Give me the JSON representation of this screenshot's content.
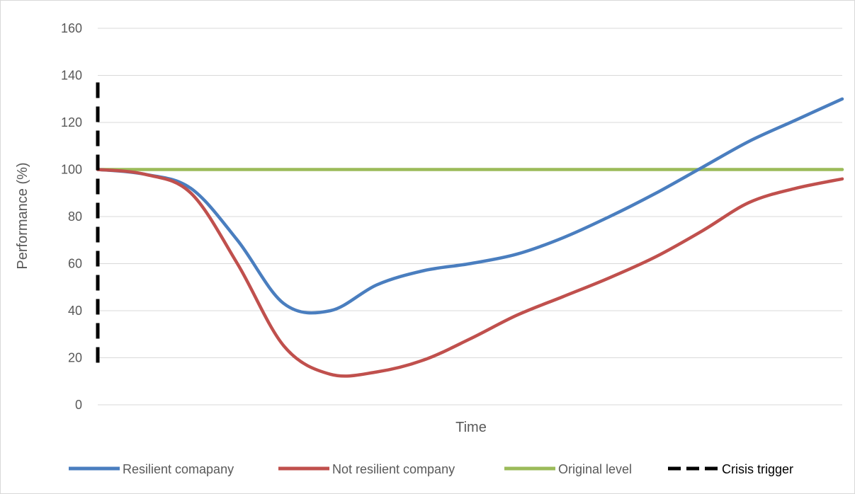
{
  "chart_data": {
    "type": "line",
    "title": "",
    "xlabel": "Time",
    "ylabel": "Performance (%)",
    "ylim": [
      0,
      160
    ],
    "yticks": [
      "0",
      "20",
      "40",
      "60",
      "80",
      "100",
      "120",
      "140",
      "160"
    ],
    "grid": "horizontal",
    "legend_position": "bottom",
    "x": [
      0,
      1,
      2,
      3,
      4,
      5,
      6,
      7,
      8,
      9,
      10,
      11,
      12,
      13,
      14,
      15,
      16
    ],
    "series": [
      {
        "name": "Resilient comapany",
        "color": "#4a7ebf",
        "style": "solid",
        "values": [
          100,
          98,
          92,
          70,
          43,
          40,
          51,
          57,
          60,
          64,
          71,
          80,
          90,
          101,
          112,
          121,
          130
        ]
      },
      {
        "name": "Not resilient company",
        "color": "#c0504d",
        "style": "solid",
        "values": [
          100,
          98,
          90,
          60,
          25,
          13,
          14,
          19,
          28,
          38,
          46,
          54,
          63,
          74,
          86,
          92,
          96
        ]
      },
      {
        "name": "Original level",
        "color": "#9bbb59",
        "style": "solid",
        "values": [
          100,
          100,
          100,
          100,
          100,
          100,
          100,
          100,
          100,
          100,
          100,
          100,
          100,
          100,
          100,
          100,
          100
        ]
      }
    ],
    "markers": [
      {
        "name": "Crisis trigger",
        "color": "#000000",
        "style": "dashed-vertical",
        "x": 0,
        "y_range": [
          15,
          137
        ]
      }
    ]
  }
}
